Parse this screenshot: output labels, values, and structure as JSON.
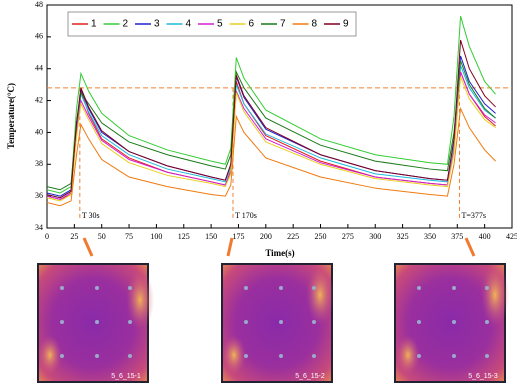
{
  "chart_data": {
    "type": "line",
    "xlabel": "Time(s)",
    "ylabel": "Temperature(°C)",
    "x": [
      0,
      12,
      22,
      27,
      31,
      38,
      50,
      75,
      110,
      150,
      163,
      168,
      173,
      180,
      200,
      250,
      300,
      350,
      366,
      372,
      378,
      386,
      400,
      410
    ],
    "series": [
      {
        "name": "1",
        "color": "#e02020",
        "values": [
          36.0,
          35.8,
          36.1,
          40.2,
          42.6,
          41.2,
          39.6,
          38.4,
          37.5,
          36.9,
          36.7,
          37.6,
          43.2,
          41.8,
          39.8,
          38.2,
          37.2,
          36.8,
          36.7,
          39.0,
          43.8,
          42.4,
          41.0,
          40.4
        ]
      },
      {
        "name": "2",
        "color": "#33cc33",
        "values": [
          36.4,
          36.2,
          36.6,
          41.5,
          43.7,
          42.6,
          41.2,
          39.8,
          38.9,
          38.2,
          38.0,
          39.0,
          44.7,
          43.4,
          41.4,
          39.6,
          38.6,
          38.1,
          38.0,
          41.0,
          47.3,
          45.4,
          43.2,
          42.4
        ]
      },
      {
        "name": "3",
        "color": "#2020cc",
        "values": [
          36.2,
          36.0,
          36.4,
          40.5,
          42.7,
          41.5,
          40.0,
          38.8,
          37.9,
          37.2,
          37.0,
          38.0,
          43.5,
          42.2,
          40.2,
          38.6,
          37.6,
          37.1,
          37.0,
          39.5,
          44.8,
          43.2,
          41.8,
          41.2
        ]
      },
      {
        "name": "4",
        "color": "#20b8e0",
        "values": [
          36.1,
          35.9,
          36.3,
          40.2,
          42.4,
          41.3,
          39.8,
          38.6,
          37.7,
          37.1,
          36.9,
          37.8,
          43.0,
          41.8,
          39.9,
          38.4,
          37.4,
          37.0,
          36.9,
          39.2,
          44.2,
          42.8,
          41.4,
          40.9
        ]
      },
      {
        "name": "5",
        "color": "#d020d0",
        "values": [
          36.0,
          35.8,
          36.2,
          39.9,
          42.0,
          41.0,
          39.5,
          38.3,
          37.5,
          36.9,
          36.7,
          37.5,
          42.6,
          41.5,
          39.6,
          38.1,
          37.2,
          36.8,
          36.7,
          38.9,
          43.8,
          42.4,
          41.1,
          40.6
        ]
      },
      {
        "name": "6",
        "color": "#e8d020",
        "values": [
          35.9,
          35.7,
          36.1,
          39.7,
          41.8,
          40.8,
          39.3,
          38.1,
          37.3,
          36.8,
          36.6,
          37.4,
          42.5,
          41.3,
          39.4,
          38.0,
          37.1,
          36.7,
          36.6,
          38.7,
          43.5,
          42.1,
          40.8,
          40.3
        ]
      },
      {
        "name": "7",
        "color": "#1a7a1a",
        "values": [
          36.6,
          36.4,
          36.8,
          40.6,
          42.5,
          41.8,
          40.6,
          39.4,
          38.6,
          37.9,
          37.7,
          38.6,
          43.8,
          42.8,
          40.9,
          39.2,
          38.2,
          37.7,
          37.6,
          40.0,
          44.5,
          43.0,
          41.5,
          40.9
        ]
      },
      {
        "name": "8",
        "color": "#f07a10",
        "values": [
          35.6,
          35.4,
          35.7,
          38.6,
          40.5,
          39.6,
          38.3,
          37.2,
          36.6,
          36.1,
          36.0,
          36.7,
          41.0,
          40.0,
          38.4,
          37.2,
          36.5,
          36.1,
          36.0,
          38.0,
          41.5,
          40.3,
          38.9,
          38.2
        ]
      },
      {
        "name": "9",
        "color": "#800020",
        "values": [
          36.1,
          35.9,
          36.3,
          40.6,
          42.8,
          41.6,
          40.1,
          38.8,
          37.9,
          37.2,
          37.0,
          38.0,
          43.6,
          42.3,
          40.3,
          38.6,
          37.6,
          37.1,
          37.0,
          39.6,
          45.8,
          44.0,
          42.3,
          41.6
        ]
      }
    ],
    "xlim": [
      0,
      425
    ],
    "xticks": [
      0,
      25,
      50,
      75,
      100,
      125,
      150,
      175,
      200,
      225,
      250,
      275,
      300,
      325,
      350,
      375,
      400,
      425
    ],
    "ylim": [
      34,
      48
    ],
    "yticks": [
      34,
      36,
      38,
      40,
      42,
      44,
      46,
      48
    ],
    "hline": 42.8,
    "annotations": [
      {
        "x": 30,
        "text": "T 30s"
      },
      {
        "x": 170,
        "text": "T 170s"
      },
      {
        "x": 377,
        "text": "T=377s"
      }
    ]
  },
  "images": [
    {
      "label": "5_6_15-1"
    },
    {
      "label": "5_6_15-2"
    },
    {
      "label": "5_6_15-3"
    }
  ]
}
